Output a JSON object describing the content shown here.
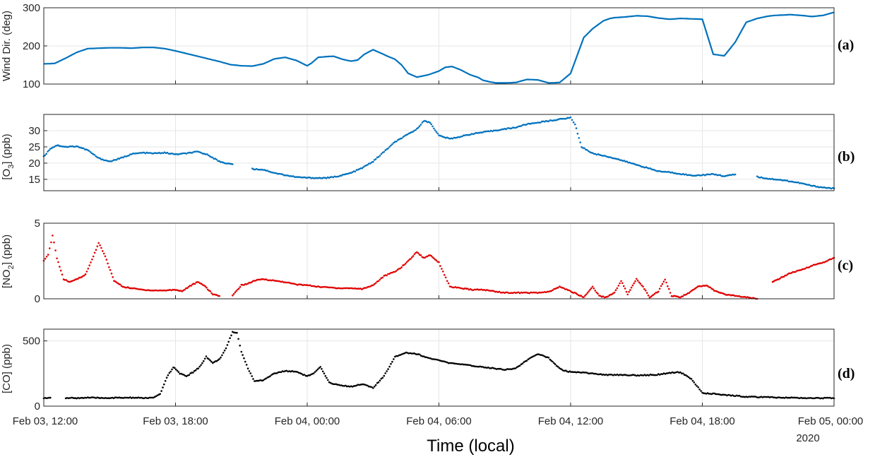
{
  "chart_data": [
    {
      "type": "line",
      "panel_label": "(a)",
      "ylabel": "Wind Dir. (deg)",
      "ylim": [
        100,
        300
      ],
      "yticks": [
        100,
        200,
        300
      ],
      "xlim": [
        12,
        48
      ],
      "color": "#0072BD",
      "marker": "line",
      "series": [
        {
          "x": [
            12,
            12.5,
            13,
            13.5,
            14,
            14.5,
            15,
            15.5,
            16,
            16.5,
            17,
            17.5,
            18,
            18.5,
            19,
            19.5,
            20,
            20.5,
            21,
            21.5,
            22,
            22.5,
            23,
            23.5,
            24,
            24.2,
            24.5,
            24.9,
            25.2,
            25.6,
            26,
            26.3,
            26.6,
            27,
            27.4,
            27.7,
            28,
            28.3,
            28.6,
            29,
            29.5,
            30,
            30.3,
            30.6,
            31,
            31.4,
            31.8,
            32,
            32.3,
            32.6,
            33,
            33.5,
            34,
            34.5,
            35,
            35.5,
            36,
            36.3,
            36.6,
            37,
            37.5,
            37.8,
            38,
            38.5,
            39,
            39.5,
            40,
            40.5,
            41,
            41.5,
            42,
            42.5,
            43,
            43.5,
            44,
            44.5,
            45,
            45.3,
            45.7,
            46,
            46.5,
            47,
            47.5,
            48
          ],
          "y": [
            153,
            154,
            168,
            183,
            193,
            194,
            195,
            195,
            194,
            196,
            196,
            193,
            187,
            180,
            173,
            166,
            159,
            151,
            148,
            147,
            153,
            166,
            170,
            162,
            148,
            155,
            170,
            172,
            173,
            165,
            160,
            163,
            178,
            190,
            180,
            172,
            165,
            150,
            128,
            118,
            124,
            134,
            144,
            146,
            137,
            125,
            117,
            110,
            106,
            103,
            103,
            104,
            112,
            111,
            103,
            104,
            128,
            175,
            222,
            245,
            266,
            272,
            274,
            276,
            279,
            278,
            273,
            270,
            272,
            271,
            270,
            178,
            174,
            210,
            262,
            272,
            278,
            280,
            281,
            282,
            280,
            277,
            280,
            288
          ]
        }
      ]
    },
    {
      "type": "scatter",
      "panel_label": "(b)",
      "ylabel": "[O3] (ppb)",
      "ylim": [
        11.5,
        35
      ],
      "yticks": [
        15,
        20,
        25,
        30
      ],
      "xlim": [
        12,
        48
      ],
      "color": "#0072BD",
      "marker": "dot",
      "series": [
        {
          "x": [
            12,
            12.3,
            12.6,
            13,
            13.5,
            14,
            14.5,
            15,
            15.5,
            16,
            16.5,
            17,
            17.5,
            18,
            18.5,
            19,
            19.5,
            20,
            20.3,
            20.6,
            21,
            21.5,
            22,
            22.5,
            23,
            23.5,
            24,
            24.5,
            25,
            25.5,
            26,
            26.5,
            27,
            27.5,
            28,
            28.5,
            29,
            29.3,
            29.6,
            30,
            30.5,
            31,
            31.5,
            32,
            32.5,
            33,
            33.5,
            34,
            34.5,
            35,
            35.5,
            36,
            36.2,
            36.5,
            37,
            37.5,
            38,
            38.5,
            39,
            39.5,
            40,
            40.5,
            41,
            41.5,
            42,
            42.5,
            43,
            43.5,
            44,
            44.5,
            45,
            45.5,
            46,
            46.5,
            47,
            47.5,
            48
          ],
          "y": [
            22,
            24.5,
            25.5,
            25,
            25.2,
            24,
            21.5,
            20.5,
            21.5,
            22.8,
            23.2,
            23,
            23.2,
            22.7,
            23,
            23.5,
            22.5,
            20.5,
            20,
            19.6,
            null,
            18.2,
            18,
            17,
            16.3,
            15.7,
            15.5,
            15.4,
            15.5,
            16.1,
            17,
            18.5,
            20.5,
            23.5,
            26.5,
            28.5,
            30.5,
            33,
            32.5,
            28.5,
            27.5,
            28.2,
            29,
            29.5,
            30,
            30.5,
            31,
            32,
            32.5,
            33,
            33.5,
            34,
            32,
            25,
            23,
            22.3,
            21.5,
            20.5,
            19.5,
            18.5,
            17.5,
            17.2,
            16.7,
            16.2,
            16.3,
            16.6,
            16,
            16.5,
            null,
            15.8,
            15.2,
            14.9,
            14.4,
            13.8,
            13,
            12.5,
            12.2
          ]
        }
      ]
    },
    {
      "type": "scatter",
      "panel_label": "(c)",
      "ylabel": "[NO2] (ppb)",
      "ylim": [
        0,
        5
      ],
      "yticks": [
        0,
        5
      ],
      "xlim": [
        12,
        48
      ],
      "color": "#E00000",
      "marker": "dot",
      "series": [
        {
          "x": [
            12,
            12.2,
            12.4,
            12.6,
            12.9,
            13.2,
            13.5,
            13.9,
            14.2,
            14.5,
            14.8,
            15.2,
            15.6,
            16,
            16.5,
            17,
            17.5,
            18,
            18.3,
            18.6,
            19,
            19.3,
            19.7,
            20,
            20.3,
            20.6,
            21,
            21.3,
            21.6,
            22,
            22.5,
            23,
            23.5,
            24,
            24.5,
            25,
            25.5,
            26,
            26.5,
            27,
            27.5,
            28,
            28.3,
            28.6,
            29,
            29.3,
            29.6,
            30,
            30.5,
            31,
            31.5,
            32,
            32.5,
            33,
            33.5,
            34,
            34.5,
            35,
            35.5,
            36,
            36.3,
            36.6,
            37,
            37.3,
            37.6,
            38,
            38.3,
            38.6,
            39,
            39.3,
            39.6,
            40,
            40.3,
            40.6,
            41,
            41.4,
            41.8,
            42.2,
            42.6,
            43,
            43.5,
            44,
            44.5,
            45,
            45.2,
            45.6,
            46,
            46.5,
            47,
            47.5,
            48
          ],
          "y": [
            2.5,
            2.9,
            4.2,
            2.7,
            1.3,
            1.1,
            1.3,
            1.6,
            2.6,
            3.7,
            2.8,
            1.2,
            0.8,
            0.7,
            0.6,
            0.55,
            0.55,
            0.6,
            0.5,
            0.8,
            1.1,
            0.9,
            0.3,
            0.2,
            null,
            0.2,
            0.9,
            1,
            1.2,
            1.3,
            1.2,
            1.1,
            0.95,
            0.9,
            0.8,
            0.75,
            0.7,
            0.7,
            0.65,
            0.9,
            1.5,
            1.8,
            2.1,
            2.5,
            3.1,
            2.7,
            2.9,
            2.4,
            0.8,
            0.7,
            0.6,
            0.6,
            0.5,
            0.4,
            0.4,
            0.4,
            0.4,
            0.45,
            0.8,
            0.5,
            0.3,
            0.1,
            0.8,
            0.2,
            0.1,
            0.4,
            1.2,
            0.3,
            1.3,
            0.8,
            0.1,
            0.5,
            1.3,
            0.2,
            0.1,
            0.4,
            0.8,
            0.9,
            0.5,
            0.3,
            0.2,
            0.1,
            0,
            null,
            1.1,
            1.4,
            1.7,
            1.9,
            2.2,
            2.4,
            2.7
          ]
        }
      ]
    },
    {
      "type": "scatter",
      "panel_label": "(d)",
      "ylabel": "[CO] (ppb)",
      "ylim": [
        0,
        590
      ],
      "yticks": [
        0,
        500
      ],
      "xlim": [
        12,
        48
      ],
      "xticks": [
        12,
        18,
        24,
        30,
        36,
        42,
        48
      ],
      "xtick_labels": [
        "Feb 03, 12:00",
        "Feb 03, 18:00",
        "Feb 04, 00:00",
        "Feb 04, 06:00",
        "Feb 04, 12:00",
        "Feb 04, 18:00",
        "Feb 05, 00:00"
      ],
      "xtick_sub": "2020",
      "xlabel": "Time (local)",
      "color": "#000000",
      "marker": "dot",
      "series": [
        {
          "x": [
            12,
            12.3,
            12.6,
            13,
            13.5,
            14,
            14.5,
            15,
            15.5,
            16,
            16.5,
            17,
            17.3,
            17.6,
            17.9,
            18.2,
            18.5,
            18.8,
            19.1,
            19.4,
            19.7,
            20,
            20.3,
            20.6,
            20.8,
            21,
            21.3,
            21.6,
            22,
            22.5,
            23,
            23.5,
            24,
            24.3,
            24.6,
            25,
            25.5,
            26,
            26.5,
            27,
            27.5,
            28,
            28.5,
            29,
            29.5,
            30,
            30.5,
            31,
            31.5,
            32,
            32.5,
            33,
            33.5,
            34,
            34.5,
            35,
            35.3,
            35.6,
            35.9,
            36.2,
            36.5,
            37,
            37.5,
            38,
            38.5,
            39,
            39.5,
            40,
            40.5,
            41,
            41.5,
            42,
            42.3,
            42.6,
            43,
            43.5,
            44,
            44.5,
            45,
            45.5,
            46,
            46.5,
            47,
            47.5,
            48
          ],
          "y": [
            62,
            62,
            null,
            62,
            62,
            65,
            63,
            63,
            64,
            65,
            62,
            65,
            90,
            220,
            300,
            250,
            230,
            260,
            300,
            380,
            330,
            360,
            440,
            570,
            560,
            420,
            290,
            190,
            200,
            250,
            270,
            265,
            230,
            250,
            300,
            180,
            160,
            150,
            170,
            140,
            230,
            380,
            410,
            400,
            370,
            350,
            330,
            320,
            310,
            300,
            290,
            280,
            290,
            350,
            400,
            370,
            320,
            280,
            265,
            260,
            260,
            250,
            240,
            240,
            240,
            235,
            238,
            242,
            255,
            260,
            210,
            100,
            95,
            95,
            85,
            80,
            72,
            70,
            68,
            66,
            65,
            63,
            62,
            62,
            62
          ]
        }
      ]
    }
  ]
}
